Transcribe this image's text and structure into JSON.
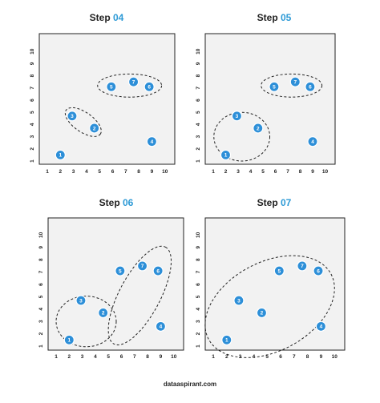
{
  "footer": "dataaspirant.com",
  "points": [
    {
      "id": "1",
      "x": 2,
      "y": 1.5
    },
    {
      "id": "2",
      "x": 4.6,
      "y": 3.7
    },
    {
      "id": "3",
      "x": 2.9,
      "y": 4.7
    },
    {
      "id": "4",
      "x": 9,
      "y": 2.6
    },
    {
      "id": "5",
      "x": 5.9,
      "y": 7.1
    },
    {
      "id": "6",
      "x": 8.8,
      "y": 7.1
    },
    {
      "id": "7",
      "x": 7.6,
      "y": 7.5
    }
  ],
  "panels": [
    {
      "title_prefix": "Step ",
      "title_number": "04",
      "clusters": [
        {
          "cx": 7.3,
          "cy": 7.2,
          "rx": 2.45,
          "ry": 0.95,
          "rot": 0
        },
        {
          "cx": 3.75,
          "cy": 4.2,
          "rx": 1.6,
          "ry": 0.8,
          "rot": -35
        }
      ]
    },
    {
      "title_prefix": "Step ",
      "title_number": "05",
      "clusters": [
        {
          "cx": 7.3,
          "cy": 7.2,
          "rx": 2.45,
          "ry": 0.95,
          "rot": 0
        },
        {
          "cx": 3.3,
          "cy": 3.0,
          "rx": 2.25,
          "ry": 2.0,
          "rot": 0
        }
      ]
    },
    {
      "title_prefix": "Step ",
      "title_number": "06",
      "clusters": [
        {
          "cx": 7.4,
          "cy": 5.1,
          "rx": 4.2,
          "ry": 1.65,
          "rot": 62
        },
        {
          "cx": 3.3,
          "cy": 3.0,
          "rx": 2.3,
          "ry": 2.05,
          "rot": 0
        }
      ]
    },
    {
      "title_prefix": "Step ",
      "title_number": "07",
      "clusters": [
        {
          "cx": 5.2,
          "cy": 4.2,
          "rx": 5.15,
          "ry": 3.6,
          "rot": 28
        }
      ]
    }
  ],
  "axis": {
    "x_ticks": [
      "1",
      "2",
      "3",
      "4",
      "5",
      "6",
      "7",
      "8",
      "9",
      "10"
    ],
    "y_ticks": [
      "1",
      "2",
      "3",
      "4",
      "5",
      "6",
      "7",
      "8",
      "9",
      "10"
    ]
  }
}
